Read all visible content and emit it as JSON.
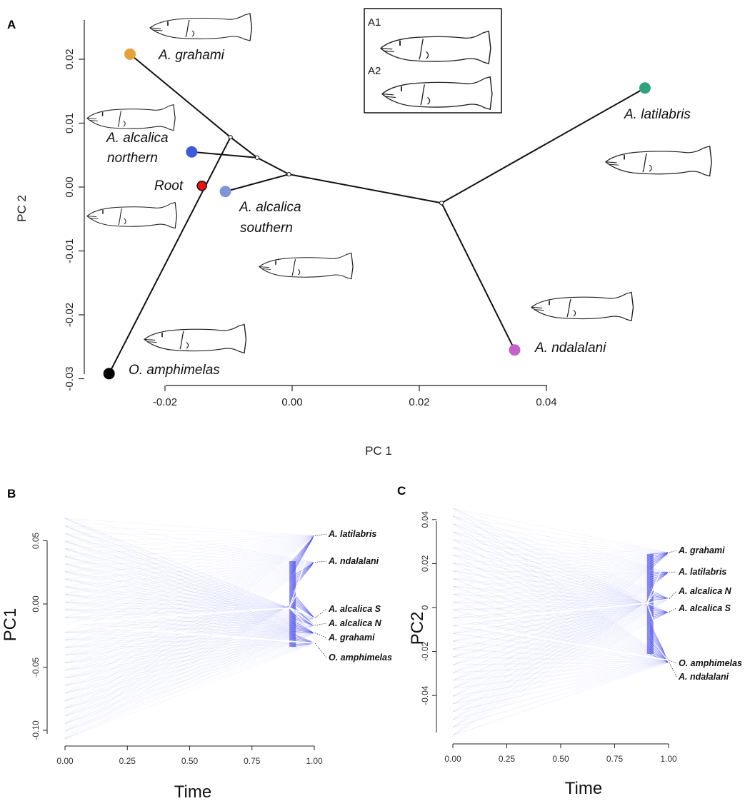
{
  "panels": {
    "a": {
      "letter": "A",
      "xlabel": "PC 1",
      "ylabel": "PC 2",
      "xticks": [
        "-0.02",
        "0.00",
        "0.02",
        "0.04"
      ],
      "yticks": [
        "0.02",
        "0.01",
        "0.00",
        "-0.01",
        "-0.02",
        "-0.03"
      ],
      "inset_labels": [
        "A1",
        "A2"
      ],
      "root_label": "Root"
    },
    "b": {
      "letter": "B",
      "xlabel": "Time",
      "ylabel": "PC1",
      "xticks": [
        "0.00",
        "0.25",
        "0.50",
        "0.75",
        "1.00"
      ],
      "yticks": [
        "0.05",
        "0.00",
        "-0.05",
        "-0.10"
      ],
      "tip_labels": [
        "A. latilabris",
        "A. ndalalani",
        "A. alcalica   S",
        "A. alcalica   N",
        "A. grahami",
        "O. amphimelas"
      ]
    },
    "c": {
      "letter": "C",
      "xlabel": "Time",
      "ylabel": "PC2",
      "xticks": [
        "0.00",
        "0.25",
        "0.50",
        "0.75",
        "1.00"
      ],
      "yticks": [
        "0.04",
        "0.02",
        "0",
        "-0.02",
        "-0.04"
      ],
      "tip_labels": [
        "A. grahami",
        "A. latilabris",
        "A. alcalica   N",
        "A. alcalica   S",
        "O. amphimelas",
        "A. ndalalani"
      ]
    }
  },
  "chart_data": [
    {
      "type": "scatter",
      "panel": "A",
      "xlabel": "PC 1",
      "ylabel": "PC 2",
      "xlim": [
        -0.033,
        0.057
      ],
      "ylim": [
        -0.031,
        0.025
      ],
      "tips": [
        {
          "name": "A. grahami",
          "x": -0.0255,
          "y": 0.0208,
          "color": "#e8a038"
        },
        {
          "name": "A. alcalica northern",
          "x": -0.0158,
          "y": 0.0055,
          "color": "#3d5ad8"
        },
        {
          "name": "A. alcalica southern",
          "x": -0.0105,
          "y": -0.0007,
          "color": "#7f95d8"
        },
        {
          "name": "A. latilabris",
          "x": 0.0555,
          "y": 0.0155,
          "color": "#2fa27a"
        },
        {
          "name": "A. ndalalani",
          "x": 0.035,
          "y": -0.0255,
          "color": "#c560c8"
        },
        {
          "name": "O. amphimelas",
          "x": -0.0288,
          "y": -0.0292,
          "color": "#000000"
        }
      ],
      "root": {
        "x": -0.0142,
        "y": 0.0002,
        "color": "#ee1111"
      },
      "nodes": [
        {
          "id": "n1",
          "x": -0.0097,
          "y": 0.0078
        },
        {
          "id": "n2",
          "x": -0.0055,
          "y": 0.0046
        },
        {
          "id": "n3",
          "x": -0.0005,
          "y": 0.002
        },
        {
          "id": "n4",
          "x": 0.0235,
          "y": -0.0025
        }
      ],
      "edges": [
        [
          "O. amphimelas",
          "n1"
        ],
        [
          "A. grahami",
          "n1"
        ],
        [
          "n1",
          "n2"
        ],
        [
          "A. alcalica northern",
          "n2"
        ],
        [
          "n2",
          "n3"
        ],
        [
          "A. alcalica southern",
          "n3"
        ],
        [
          "n3",
          "n4"
        ],
        [
          "n4",
          "A. latilabris"
        ],
        [
          "n4",
          "A. ndalalani"
        ]
      ],
      "grid": false
    },
    {
      "type": "line",
      "panel": "B",
      "xlabel": "Time",
      "ylabel": "PC1",
      "xlim": [
        0,
        1
      ],
      "ylim": [
        -0.105,
        0.068
      ],
      "color": "#2a2ee8",
      "tips": [
        {
          "name": "A. latilabris",
          "y": 0.054
        },
        {
          "name": "A. ndalalani",
          "y": 0.033
        },
        {
          "name": "A. alcalica S",
          "y": -0.011
        },
        {
          "name": "A. alcalica N",
          "y": -0.017
        },
        {
          "name": "A. grahami",
          "y": -0.023
        },
        {
          "name": "O. amphimelas",
          "y": -0.031
        }
      ],
      "root": {
        "x": 0,
        "y": -0.016
      },
      "internal_node": {
        "x": 0.9,
        "y": -0.003
      }
    },
    {
      "type": "line",
      "panel": "C",
      "xlabel": "Time",
      "ylabel": "PC2",
      "xlim": [
        0,
        1
      ],
      "ylim": [
        -0.05,
        0.042
      ],
      "color": "#2a2ee8",
      "tips": [
        {
          "name": "A. grahami",
          "y": 0.025
        },
        {
          "name": "A. latilabris",
          "y": 0.016
        },
        {
          "name": "A. alcalica N",
          "y": 0.004
        },
        {
          "name": "A. alcalica S",
          "y": -0.002
        },
        {
          "name": "O. amphimelas",
          "y": -0.024
        },
        {
          "name": "A. ndalalani",
          "y": -0.025
        }
      ],
      "root": {
        "x": 0,
        "y": -0.007
      },
      "internal_node": {
        "x": 0.9,
        "y": 0.002
      }
    }
  ]
}
